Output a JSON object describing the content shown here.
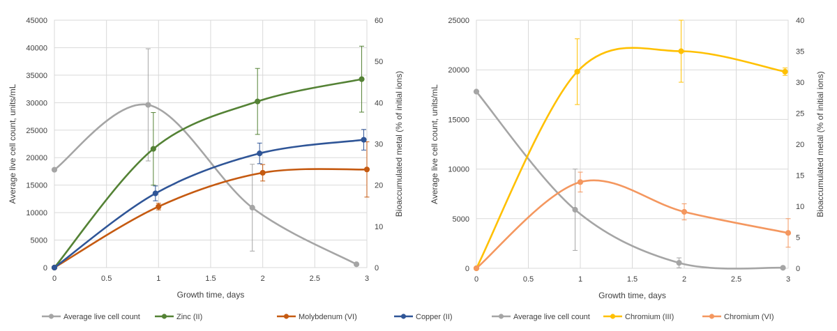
{
  "colors": {
    "grid": "#d9d9d9",
    "axis": "#bfbfbf",
    "text": "#404040",
    "live_cells": "#a5a5a5",
    "zinc": "#548235",
    "molybdenum": "#c55a11",
    "copper": "#2f5597",
    "chromium3": "#ffc000",
    "chromium6": "#f4975f"
  },
  "chart_data": [
    {
      "type": "line",
      "xlabel": "Growth time, days",
      "ylabel": "Average live cell count, units/mL",
      "y2label": "Bioaccumulated metal (% of initial ions)",
      "xlim": [
        0,
        3
      ],
      "ylim": [
        0,
        45000
      ],
      "y2lim": [
        0,
        60
      ],
      "xticks": [
        "0",
        "0.5",
        "1",
        "1.5",
        "2",
        "2.5",
        "3"
      ],
      "yticks": [
        "0",
        "5000",
        "10000",
        "15000",
        "20000",
        "25000",
        "30000",
        "35000",
        "40000",
        "45000"
      ],
      "y2ticks": [
        "0",
        "10",
        "20",
        "30",
        "40",
        "50",
        "60"
      ],
      "grid": true,
      "legend_position": "bottom",
      "series": [
        {
          "name": "Average live cell count",
          "color": "#a5a5a5",
          "axis": "left",
          "x": [
            0,
            0.9,
            1.9,
            2.9
          ],
          "y": [
            17800,
            29600,
            10900,
            600
          ],
          "err": [
            null,
            10200,
            7900,
            null
          ]
        },
        {
          "name": "Zinc (II)",
          "color": "#548235",
          "axis": "right",
          "x": [
            0,
            0.95,
            1.95,
            2.95
          ],
          "y": [
            0,
            28.8,
            40.3,
            45.7
          ],
          "err": [
            null,
            8.8,
            8.0,
            8.0
          ]
        },
        {
          "name": "Molybdenum (VI)",
          "color": "#c55a11",
          "axis": "right",
          "x": [
            0,
            1.0,
            2.0,
            3.0
          ],
          "y": [
            0,
            14.8,
            23.0,
            23.8
          ],
          "err": [
            null,
            0.8,
            2.0,
            6.7
          ]
        },
        {
          "name": "Copper (II)",
          "color": "#2f5597",
          "axis": "right",
          "x": [
            0,
            0.97,
            1.97,
            2.97
          ],
          "y": [
            0,
            18.0,
            27.7,
            31.0
          ],
          "err": [
            null,
            1.8,
            2.5,
            2.5
          ]
        }
      ]
    },
    {
      "type": "line",
      "xlabel": "Growth time, days",
      "ylabel": "Average live cell count, units/mL",
      "y2label": "Bioaccumulated metal (% of initial ions)",
      "xlim": [
        0,
        3
      ],
      "ylim": [
        0,
        25000
      ],
      "y2lim": [
        0,
        40
      ],
      "xticks": [
        "0",
        "0.5",
        "1",
        "1.5",
        "2",
        "2.5",
        "3"
      ],
      "yticks": [
        "0",
        "5000",
        "10000",
        "15000",
        "20000",
        "25000"
      ],
      "y2ticks": [
        "0",
        "5",
        "10",
        "15",
        "20",
        "25",
        "30",
        "35",
        "40"
      ],
      "grid": true,
      "legend_position": "bottom",
      "series": [
        {
          "name": "Average live cell count",
          "color": "#a5a5a5",
          "axis": "left",
          "x": [
            0,
            0.95,
            1.95,
            2.95
          ],
          "y": [
            17800,
            5900,
            550,
            50
          ],
          "err": [
            null,
            4100,
            500,
            null
          ]
        },
        {
          "name": "Chromium (III)",
          "color": "#ffc000",
          "axis": "right",
          "x": [
            0,
            0.97,
            1.97,
            2.97
          ],
          "y": [
            0,
            31.7,
            35.0,
            31.7
          ],
          "err": [
            null,
            5.3,
            5.0,
            0.6
          ]
        },
        {
          "name": "Chromium (VI)",
          "color": "#f4975f",
          "axis": "right",
          "x": [
            0,
            1.0,
            2.0,
            3.0
          ],
          "y": [
            0,
            13.9,
            9.1,
            5.7
          ],
          "err": [
            null,
            1.6,
            1.3,
            2.3
          ]
        }
      ]
    }
  ]
}
